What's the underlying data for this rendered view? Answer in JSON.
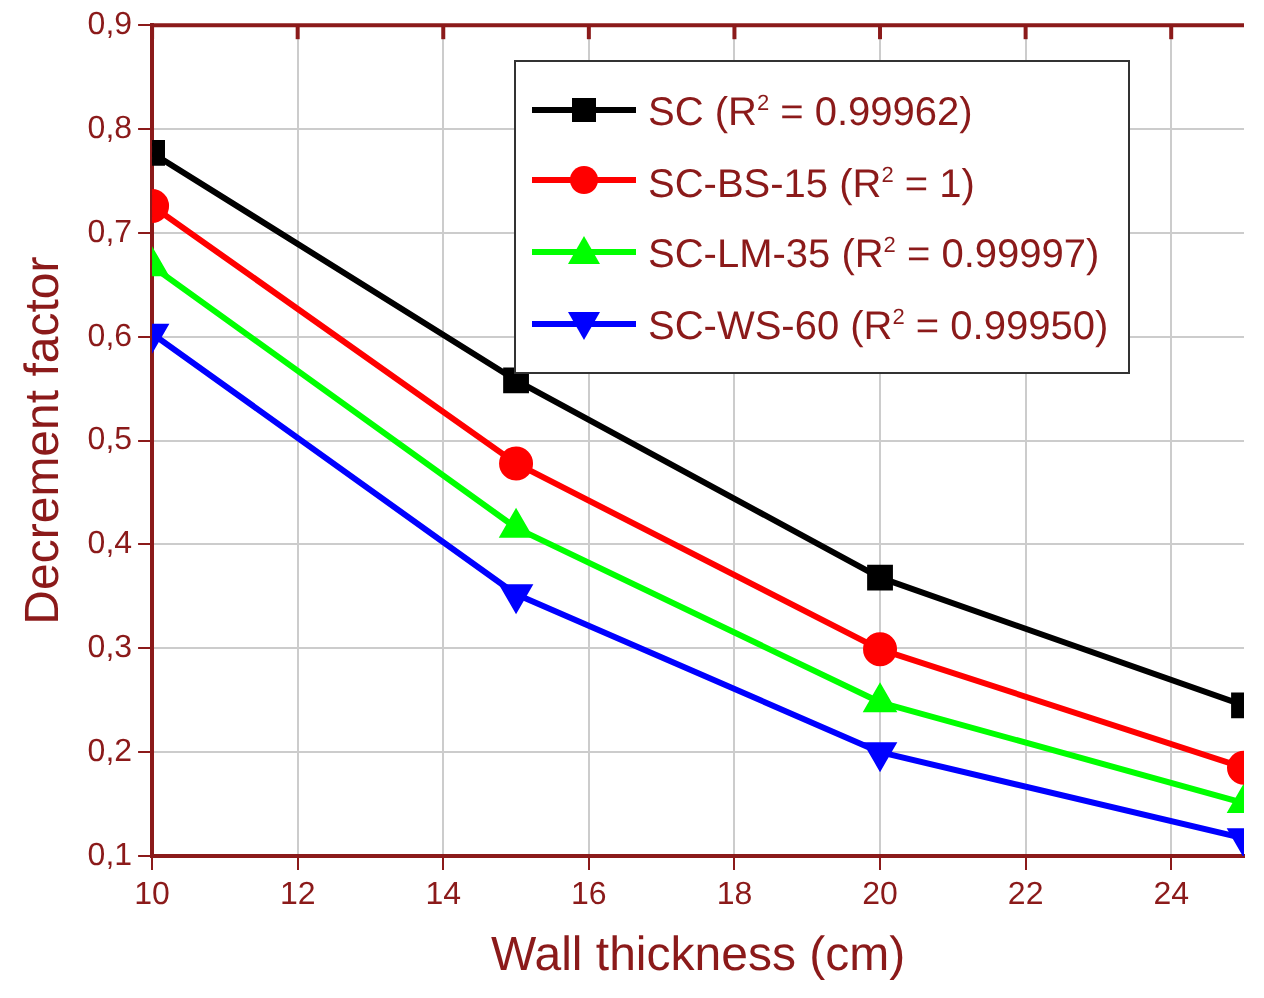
{
  "chart_data": {
    "type": "line",
    "xlabel": "Wall thickness (cm)",
    "ylabel": "Decrement factor",
    "xlim": [
      10,
      25
    ],
    "xticks": [
      10,
      12,
      14,
      16,
      18,
      20,
      22,
      24
    ],
    "ylim": [
      0.1,
      0.9
    ],
    "yticks": [
      {
        "value": 0.1,
        "label": "0,1"
      },
      {
        "value": 0.2,
        "label": "0,2"
      },
      {
        "value": 0.3,
        "label": "0,3"
      },
      {
        "value": 0.4,
        "label": "0,4"
      },
      {
        "value": 0.5,
        "label": "0,5"
      },
      {
        "value": 0.6,
        "label": "0,6"
      },
      {
        "value": 0.7,
        "label": "0,7"
      },
      {
        "value": 0.8,
        "label": "0,8"
      },
      {
        "value": 0.9,
        "label": "0,9"
      }
    ],
    "grid": true,
    "legend": "top right",
    "line_style": "solid",
    "x": [
      10,
      15,
      20,
      25
    ],
    "series": [
      {
        "name": "SC (R$^{2}$ = 0.99962)",
        "color": "#000000",
        "marker": "square",
        "values": [
          0.777,
          0.558,
          0.368,
          0.245
        ]
      },
      {
        "name": "SC-BS-15 (R$^{2}$ = 1)",
        "color": "#ff0000",
        "marker": "circle",
        "values": [
          0.726,
          0.478,
          0.299,
          0.185
        ]
      },
      {
        "name": "SC-LM-35 (R$^{2}$ = 0.99997)",
        "color": "#00ff00",
        "marker": "triangle",
        "values": [
          0.668,
          0.416,
          0.248,
          0.151
        ]
      },
      {
        "name": "SC-WS-60 (R$^{2}$ = 0.99950)",
        "color": "#0000ff",
        "marker": "triangle_down",
        "values": [
          0.603,
          0.352,
          0.2,
          0.117
        ]
      }
    ]
  }
}
